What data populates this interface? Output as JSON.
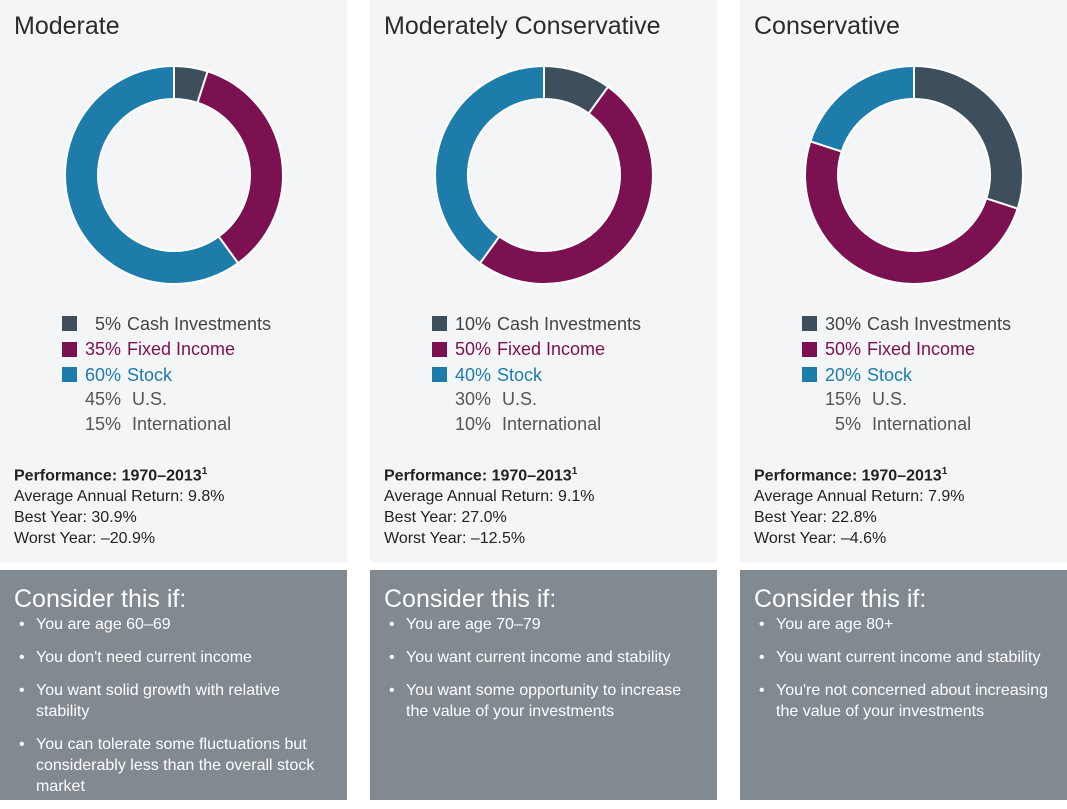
{
  "colors": {
    "cash": "#3d4e5c",
    "fixed_income": "#7b1150",
    "stock": "#1d7ca9",
    "panel_top": "#f4f5f7",
    "panel_bottom": "#818a91"
  },
  "portfolios": [
    {
      "title": "Moderate",
      "chart_data": {
        "type": "pie",
        "categories": [
          "Cash Investments",
          "Fixed Income",
          "Stock"
        ],
        "values": [
          5,
          35,
          60
        ]
      },
      "legend": [
        {
          "pct": "5%",
          "label": "Cash Investments"
        },
        {
          "pct": "35%",
          "label": "Fixed Income"
        },
        {
          "pct": "60%",
          "label": "Stock"
        }
      ],
      "sub": [
        {
          "pct": "45%",
          "label": "U.S."
        },
        {
          "pct": "15%",
          "label": "International"
        }
      ],
      "performance": {
        "heading": "Performance: 1970–2013",
        "footnote": "1",
        "avg": "Average Annual Return: 9.8%",
        "best": "Best Year: 30.9%",
        "worst": "Worst Year: –20.9%"
      },
      "consider": {
        "title": "Consider this if:",
        "items": [
          "You are age 60–69",
          "You don't need current income",
          "You want solid growth with relative stability",
          "You can tolerate some fluctuations but considerably less than the overall stock market"
        ]
      }
    },
    {
      "title": "Moderately Conservative",
      "chart_data": {
        "type": "pie",
        "categories": [
          "Cash Investments",
          "Fixed Income",
          "Stock"
        ],
        "values": [
          10,
          50,
          40
        ]
      },
      "legend": [
        {
          "pct": "10%",
          "label": "Cash Investments"
        },
        {
          "pct": "50%",
          "label": "Fixed Income"
        },
        {
          "pct": "40%",
          "label": "Stock"
        }
      ],
      "sub": [
        {
          "pct": "30%",
          "label": "U.S."
        },
        {
          "pct": "10%",
          "label": "International"
        }
      ],
      "performance": {
        "heading": "Performance: 1970–2013",
        "footnote": "1",
        "avg": "Average Annual Return: 9.1%",
        "best": "Best Year: 27.0%",
        "worst": "Worst Year: –12.5%"
      },
      "consider": {
        "title": "Consider this if:",
        "items": [
          "You are age 70–79",
          "You want current income and stability",
          "You want some opportunity to increase the value of your investments"
        ]
      }
    },
    {
      "title": "Conservative",
      "chart_data": {
        "type": "pie",
        "categories": [
          "Cash Investments",
          "Fixed Income",
          "Stock"
        ],
        "values": [
          30,
          50,
          20
        ]
      },
      "legend": [
        {
          "pct": "30%",
          "label": "Cash Investments"
        },
        {
          "pct": "50%",
          "label": "Fixed Income"
        },
        {
          "pct": "20%",
          "label": "Stock"
        }
      ],
      "sub": [
        {
          "pct": "15%",
          "label": "U.S."
        },
        {
          "pct": "5%",
          "label": "International"
        }
      ],
      "performance": {
        "heading": "Performance: 1970–2013",
        "footnote": "1",
        "avg": "Average Annual Return: 7.9%",
        "best": "Best Year: 22.8%",
        "worst": "Worst Year: –4.6%"
      },
      "consider": {
        "title": "Consider this if:",
        "items": [
          "You are age 80+",
          "You want current income and stability",
          "You're not concerned about increasing the value of your investments"
        ]
      }
    }
  ]
}
